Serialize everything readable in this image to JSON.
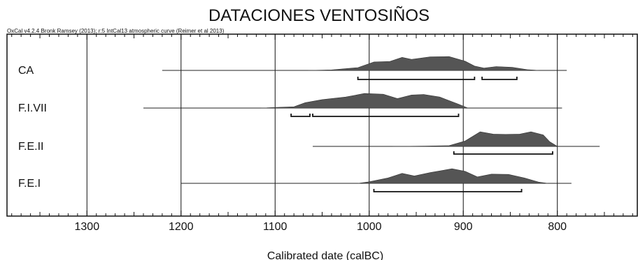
{
  "chart_data": {
    "type": "area",
    "title": "DATACIONES VENTOSIÑOS",
    "calibration_note": "OxCal v4.2.4 Bronk Ramsey (2013); r:5 IntCal13 atmospheric curve (Reimer et al 2013)",
    "xlabel": "Calibrated date (calBC)",
    "x_ticks": [
      1300,
      1200,
      1100,
      1000,
      900,
      800
    ],
    "x_range": [
      1385,
      715
    ],
    "x_reversed": true,
    "grid": true,
    "series": [
      {
        "name": "CA",
        "line_range": [
          1220,
          790
        ],
        "distribution": [
          [
            1065,
            0
          ],
          [
            1040,
            0.03
          ],
          [
            1012,
            0.18
          ],
          [
            995,
            0.55
          ],
          [
            978,
            0.58
          ],
          [
            965,
            0.85
          ],
          [
            955,
            0.72
          ],
          [
            935,
            0.88
          ],
          [
            915,
            0.9
          ],
          [
            898,
            0.6
          ],
          [
            888,
            0.28
          ],
          [
            878,
            0.15
          ],
          [
            865,
            0.25
          ],
          [
            848,
            0.2
          ],
          [
            832,
            0.05
          ],
          [
            820,
            0
          ]
        ],
        "intervals": [
          [
            1012,
            888
          ],
          [
            880,
            843
          ]
        ]
      },
      {
        "name": "F.I.VII",
        "line_range": [
          1240,
          795
        ],
        "distribution": [
          [
            1115,
            0
          ],
          [
            1095,
            0.05
          ],
          [
            1080,
            0.08
          ],
          [
            1068,
            0.35
          ],
          [
            1050,
            0.55
          ],
          [
            1025,
            0.72
          ],
          [
            1005,
            0.95
          ],
          [
            985,
            0.9
          ],
          [
            970,
            0.62
          ],
          [
            955,
            0.85
          ],
          [
            942,
            0.88
          ],
          [
            925,
            0.72
          ],
          [
            905,
            0.25
          ],
          [
            895,
            0
          ]
        ],
        "intervals": [
          [
            1083,
            1063
          ],
          [
            1060,
            905
          ]
        ]
      },
      {
        "name": "F.E.II",
        "line_range": [
          1060,
          755
        ],
        "distribution": [
          [
            975,
            0
          ],
          [
            940,
            0.02
          ],
          [
            915,
            0.05
          ],
          [
            898,
            0.35
          ],
          [
            882,
            0.95
          ],
          [
            868,
            0.8
          ],
          [
            855,
            0.78
          ],
          [
            840,
            0.8
          ],
          [
            828,
            0.95
          ],
          [
            815,
            0.75
          ],
          [
            808,
            0.3
          ],
          [
            800,
            0
          ]
        ],
        "intervals": [
          [
            910,
            805
          ]
        ]
      },
      {
        "name": "F.E.I",
        "line_range": [
          1200,
          785
        ],
        "distribution": [
          [
            1012,
            0
          ],
          [
            1000,
            0.1
          ],
          [
            980,
            0.35
          ],
          [
            965,
            0.65
          ],
          [
            952,
            0.48
          ],
          [
            935,
            0.7
          ],
          [
            912,
            0.95
          ],
          [
            898,
            0.78
          ],
          [
            885,
            0.42
          ],
          [
            870,
            0.6
          ],
          [
            852,
            0.58
          ],
          [
            835,
            0.35
          ],
          [
            820,
            0.08
          ],
          [
            810,
            0
          ]
        ],
        "intervals": [
          [
            995,
            838
          ]
        ]
      }
    ]
  }
}
